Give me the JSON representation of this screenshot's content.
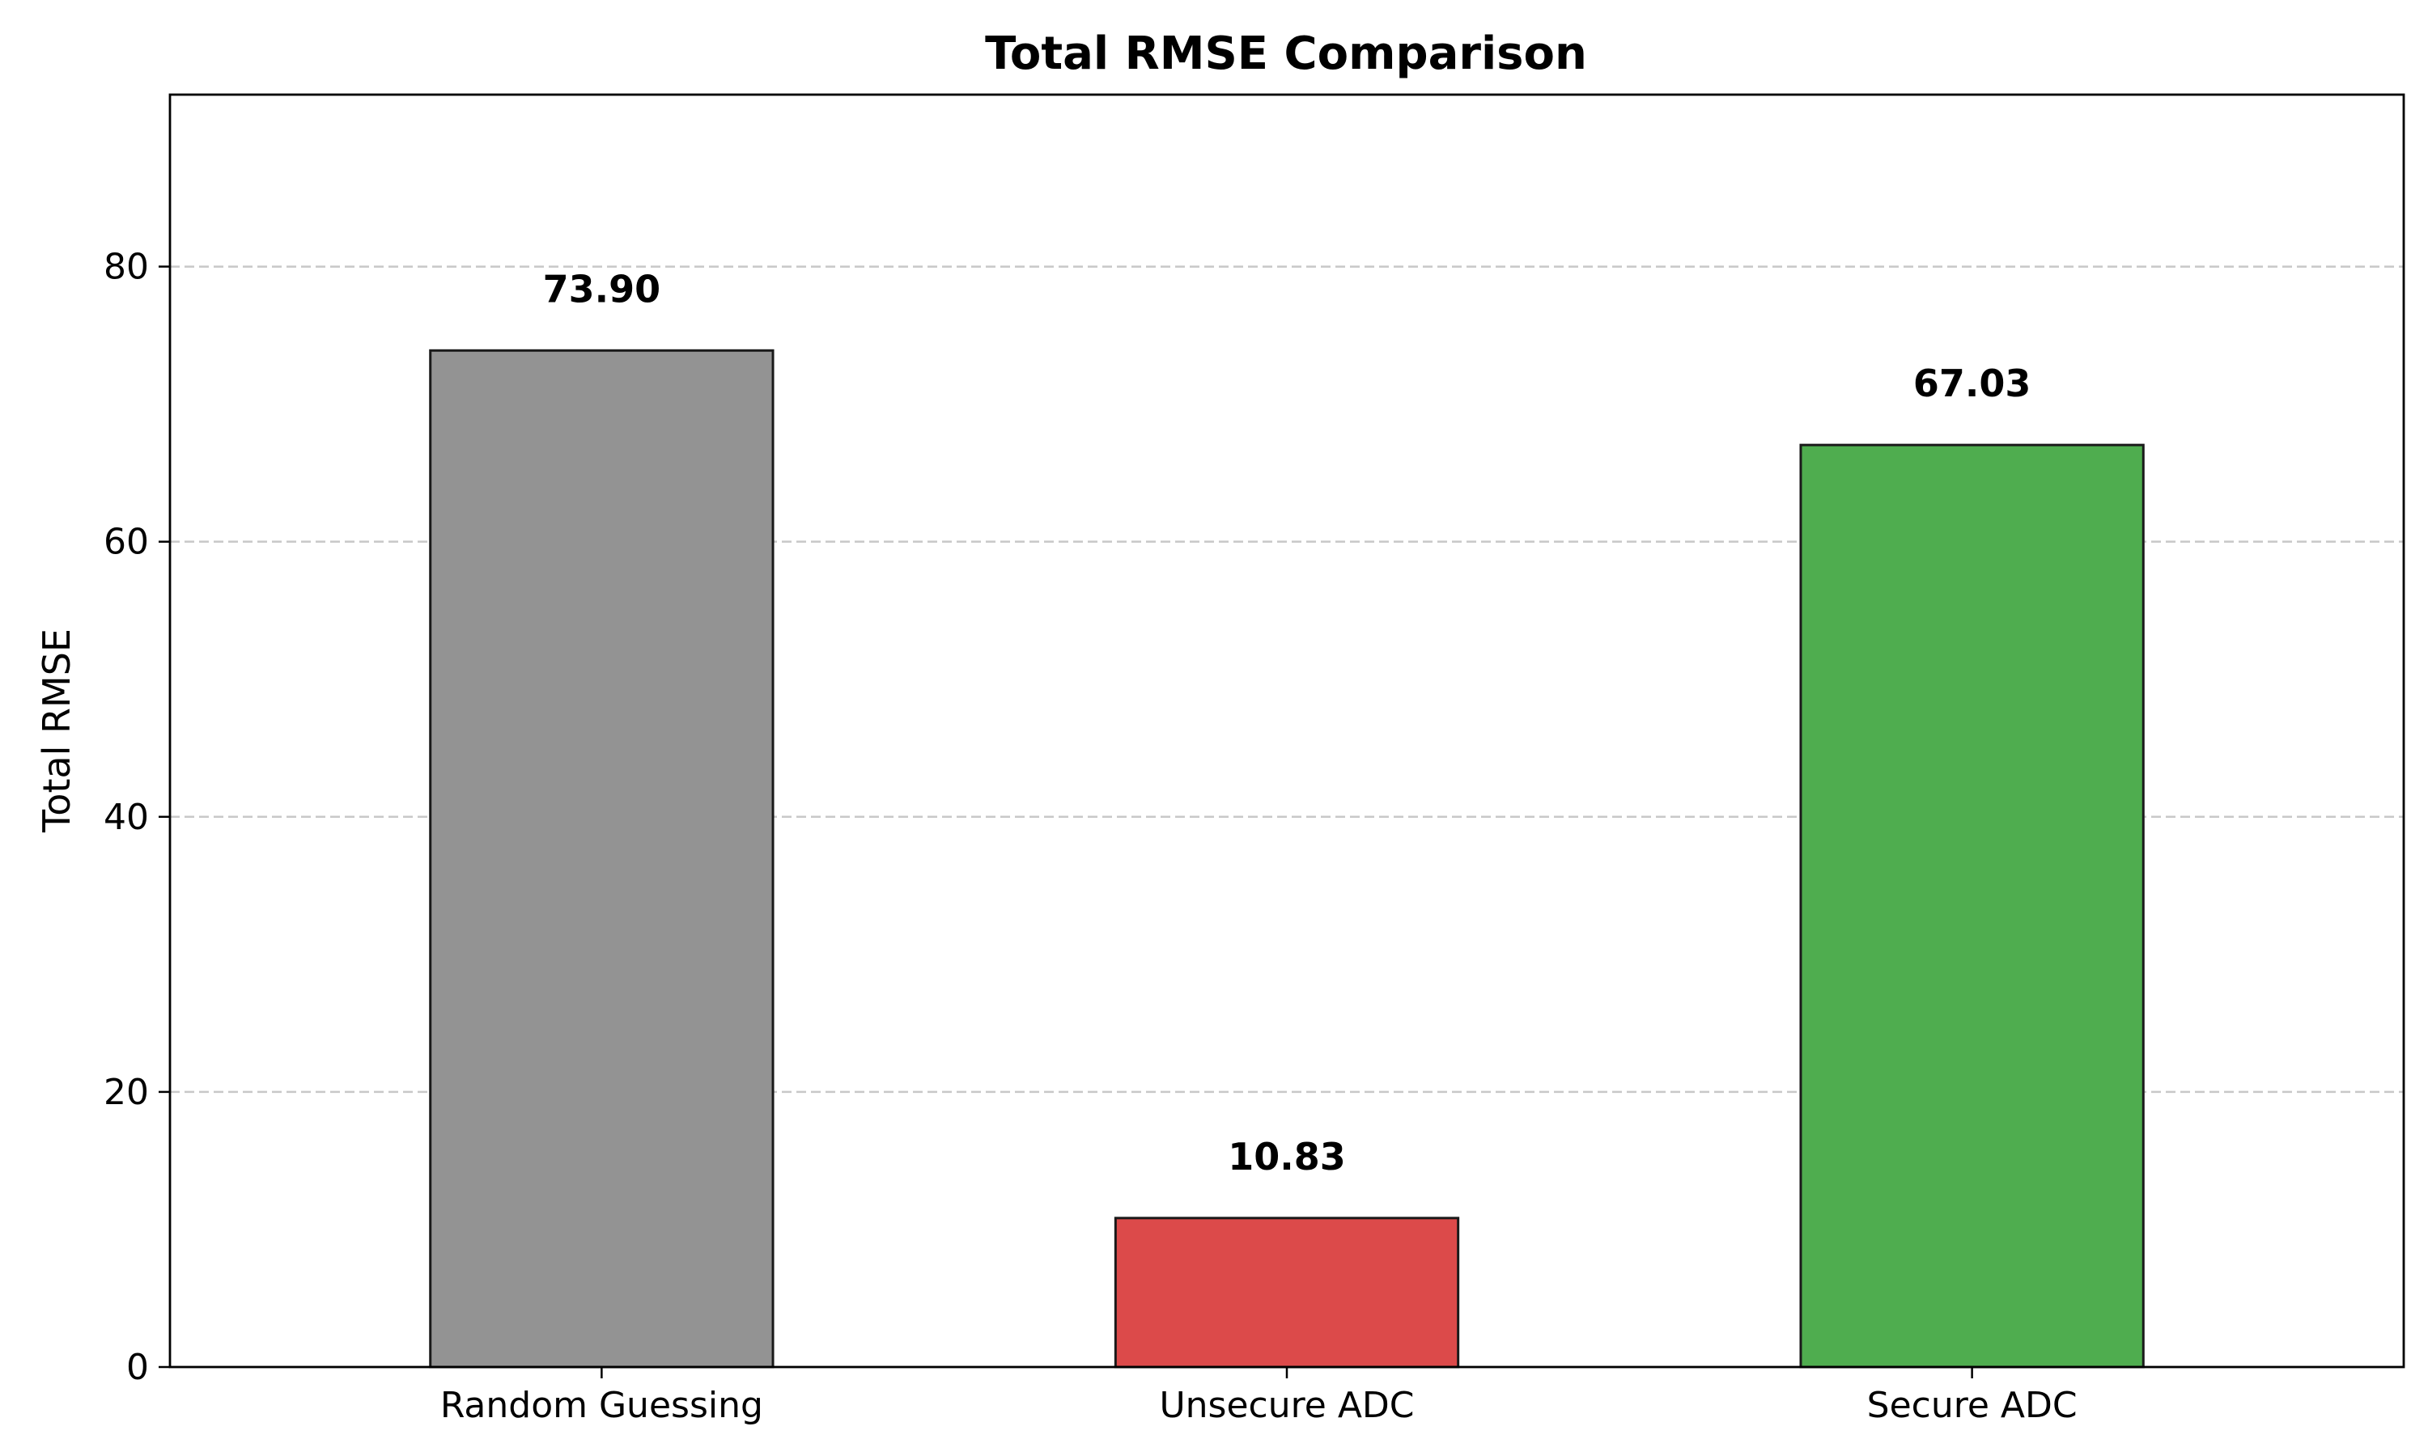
{
  "chart_data": {
    "type": "bar",
    "title": "Total RMSE Comparison",
    "xlabel": "",
    "ylabel": "Total RMSE",
    "categories": [
      "Random Guessing",
      "Unsecure ADC",
      "Secure ADC"
    ],
    "values": [
      73.9,
      10.83,
      67.03
    ],
    "value_labels": [
      "73.90",
      "10.83",
      "67.03"
    ],
    "colors": [
      "#939393",
      "#dc4a4a",
      "#4fad4f"
    ],
    "ylim": [
      0,
      92.5
    ],
    "yticks": [
      0,
      20,
      40,
      60,
      80
    ],
    "grid": true
  }
}
